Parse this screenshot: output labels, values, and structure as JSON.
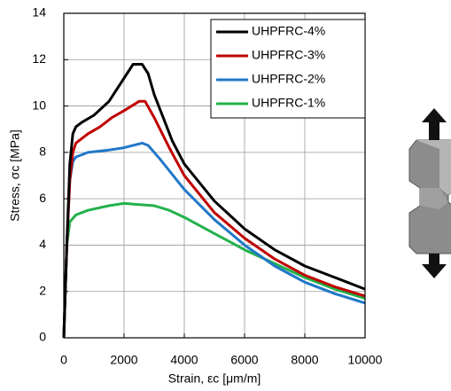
{
  "chart_data": {
    "type": "line",
    "x_label": "Strain, εc [μm/m]",
    "y_label": "Stress, σc [MPa]",
    "xlim": [
      0,
      10000
    ],
    "xticks": [
      0,
      2000,
      4000,
      6000,
      8000,
      10000
    ],
    "ylim": [
      0,
      14
    ],
    "yticks": [
      0,
      2,
      4,
      6,
      8,
      10,
      12,
      14
    ],
    "grid": true,
    "legend": "upper right",
    "series": [
      {
        "name": "UHPFRC-4%",
        "color": "#000000",
        "x": [
          0,
          100,
          200,
          300,
          400,
          600,
          1000,
          1500,
          2000,
          2300,
          2600,
          2800,
          3000,
          3300,
          3600,
          4000,
          5000,
          6000,
          7000,
          8000,
          9000,
          10000
        ],
        "values": [
          0,
          4,
          7.5,
          8.8,
          9.1,
          9.3,
          9.6,
          10.2,
          11.2,
          11.8,
          11.8,
          11.4,
          10.5,
          9.5,
          8.5,
          7.5,
          5.9,
          4.7,
          3.8,
          3.1,
          2.6,
          2.1
        ]
      },
      {
        "name": "UHPFRC-3%",
        "color": "#c00000",
        "x": [
          0,
          100,
          200,
          300,
          400,
          800,
          1200,
          1600,
          2000,
          2500,
          2700,
          3000,
          3500,
          4000,
          5000,
          6000,
          7000,
          8000,
          9000,
          10000
        ],
        "values": [
          0,
          4,
          6.8,
          8.0,
          8.4,
          8.8,
          9.1,
          9.5,
          9.8,
          10.2,
          10.2,
          9.5,
          8.2,
          7.0,
          5.4,
          4.3,
          3.4,
          2.7,
          2.2,
          1.8
        ]
      },
      {
        "name": "UHPFRC-2%",
        "color": "#1f78c8",
        "x": [
          0,
          100,
          200,
          300,
          400,
          800,
          1500,
          2000,
          2600,
          2800,
          3200,
          4000,
          5000,
          6000,
          7000,
          8000,
          9000,
          10000
        ],
        "values": [
          0,
          4,
          6.8,
          7.6,
          7.8,
          8.0,
          8.1,
          8.2,
          8.4,
          8.3,
          7.7,
          6.4,
          5.1,
          4.0,
          3.1,
          2.4,
          1.9,
          1.5
        ]
      },
      {
        "name": "UHPFRC-1%",
        "color": "#22b14c",
        "x": [
          0,
          100,
          200,
          400,
          800,
          1500,
          2000,
          2500,
          3000,
          3500,
          4000,
          5000,
          6000,
          7000,
          8000,
          9000,
          10000
        ],
        "values": [
          0,
          4,
          5.0,
          5.3,
          5.5,
          5.7,
          5.8,
          5.75,
          5.7,
          5.5,
          5.2,
          4.5,
          3.8,
          3.2,
          2.6,
          2.1,
          1.7
        ]
      }
    ]
  }
}
